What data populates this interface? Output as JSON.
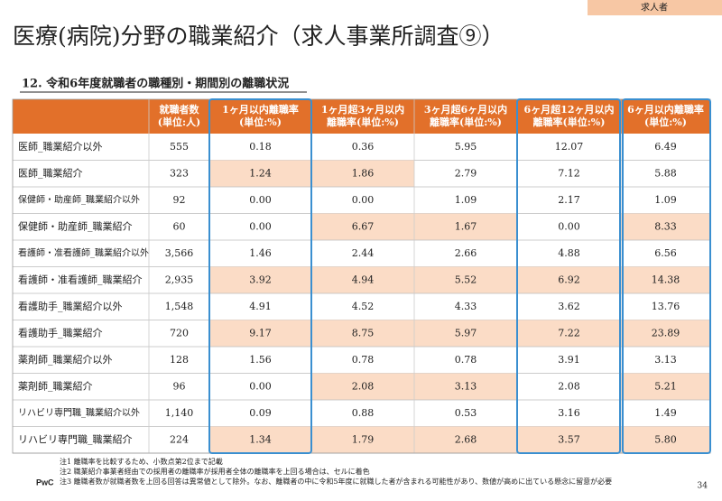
{
  "tab": "求人者",
  "header": {
    "title": "医療(病院)分野の職業紹介（求人事業所調査⑨）",
    "subtitle": "12.  令和6年度就職者の職種別・期間別の離職状況"
  },
  "table": {
    "headers": [
      [
        "就職者数",
        "(単位:人)"
      ],
      [
        "1ヶ月以内離職率",
        "(単位:%)"
      ],
      [
        "1ヶ月超3ヶ月以内",
        "離職率(単位:%)"
      ],
      [
        "3ヶ月超6ヶ月以内",
        "離職率(単位:%)"
      ],
      [
        "6ヶ月超12ヶ月以内",
        "離職率(単位:%)"
      ],
      [
        "6ヶ月以内離職率",
        "(単位:%)"
      ]
    ],
    "rows": [
      [
        "医師_職業紹介以外",
        "555",
        "0.18",
        "0.36",
        "5.95",
        "12.07",
        "6.49"
      ],
      [
        "医師_職業紹介",
        "323",
        "1.24",
        "1.86",
        "2.79",
        "7.12",
        "5.88"
      ],
      [
        "保健師・助産師_職業紹介以外",
        "92",
        "0.00",
        "0.00",
        "1.09",
        "2.17",
        "1.09"
      ],
      [
        "保健師・助産師_職業紹介",
        "60",
        "0.00",
        "6.67",
        "1.67",
        "0.00",
        "8.33"
      ],
      [
        "看護師・准看護師_職業紹介以外",
        "3,566",
        "1.46",
        "2.44",
        "2.66",
        "4.88",
        "6.56"
      ],
      [
        "看護師・准看護師_職業紹介",
        "2,935",
        "3.92",
        "4.94",
        "5.52",
        "6.92",
        "14.38"
      ],
      [
        "看護助手_職業紹介以外",
        "1,548",
        "4.91",
        "4.52",
        "4.33",
        "3.62",
        "13.76"
      ],
      [
        "看護助手_職業紹介",
        "720",
        "9.17",
        "8.75",
        "5.97",
        "7.22",
        "23.89"
      ],
      [
        "薬剤師_職業紹介以外",
        "128",
        "1.56",
        "0.78",
        "0.78",
        "3.91",
        "3.13"
      ],
      [
        "薬剤師_職業紹介",
        "96",
        "0.00",
        "2.08",
        "3.13",
        "2.08",
        "5.21"
      ],
      [
        "リハビリ専門職_職業紹介以外",
        "1,140",
        "0.09",
        "0.88",
        "0.53",
        "3.16",
        "1.49"
      ],
      [
        "リハビリ専門職_職業紹介",
        "224",
        "1.34",
        "1.79",
        "2.68",
        "3.57",
        "5.80"
      ]
    ],
    "highlighted": [
      [],
      [
        2,
        3
      ],
      [],
      [
        3,
        4,
        6
      ],
      [],
      [
        2,
        3,
        4,
        5,
        6
      ],
      [],
      [
        2,
        3,
        4,
        5,
        6
      ],
      [],
      [
        3,
        4,
        6
      ],
      [],
      [
        2,
        3,
        4,
        5,
        6
      ]
    ]
  },
  "notes": [
    "注1 離職率を比較するため、小数点第2位まで記載",
    "注2 職業紹介事業者経由での採用者の離職率が採用者全体の離職率を上回る場合は、セルに着色",
    "注3 離職者数が就職者数を上回る回答は異常値として除外。なお、離職者の中に令和5年度に就職した者が含まれる可能性があり、数値が高めに出ている懸念に留意が必要"
  ],
  "footer": {
    "brand": "PwC",
    "page": "34"
  }
}
